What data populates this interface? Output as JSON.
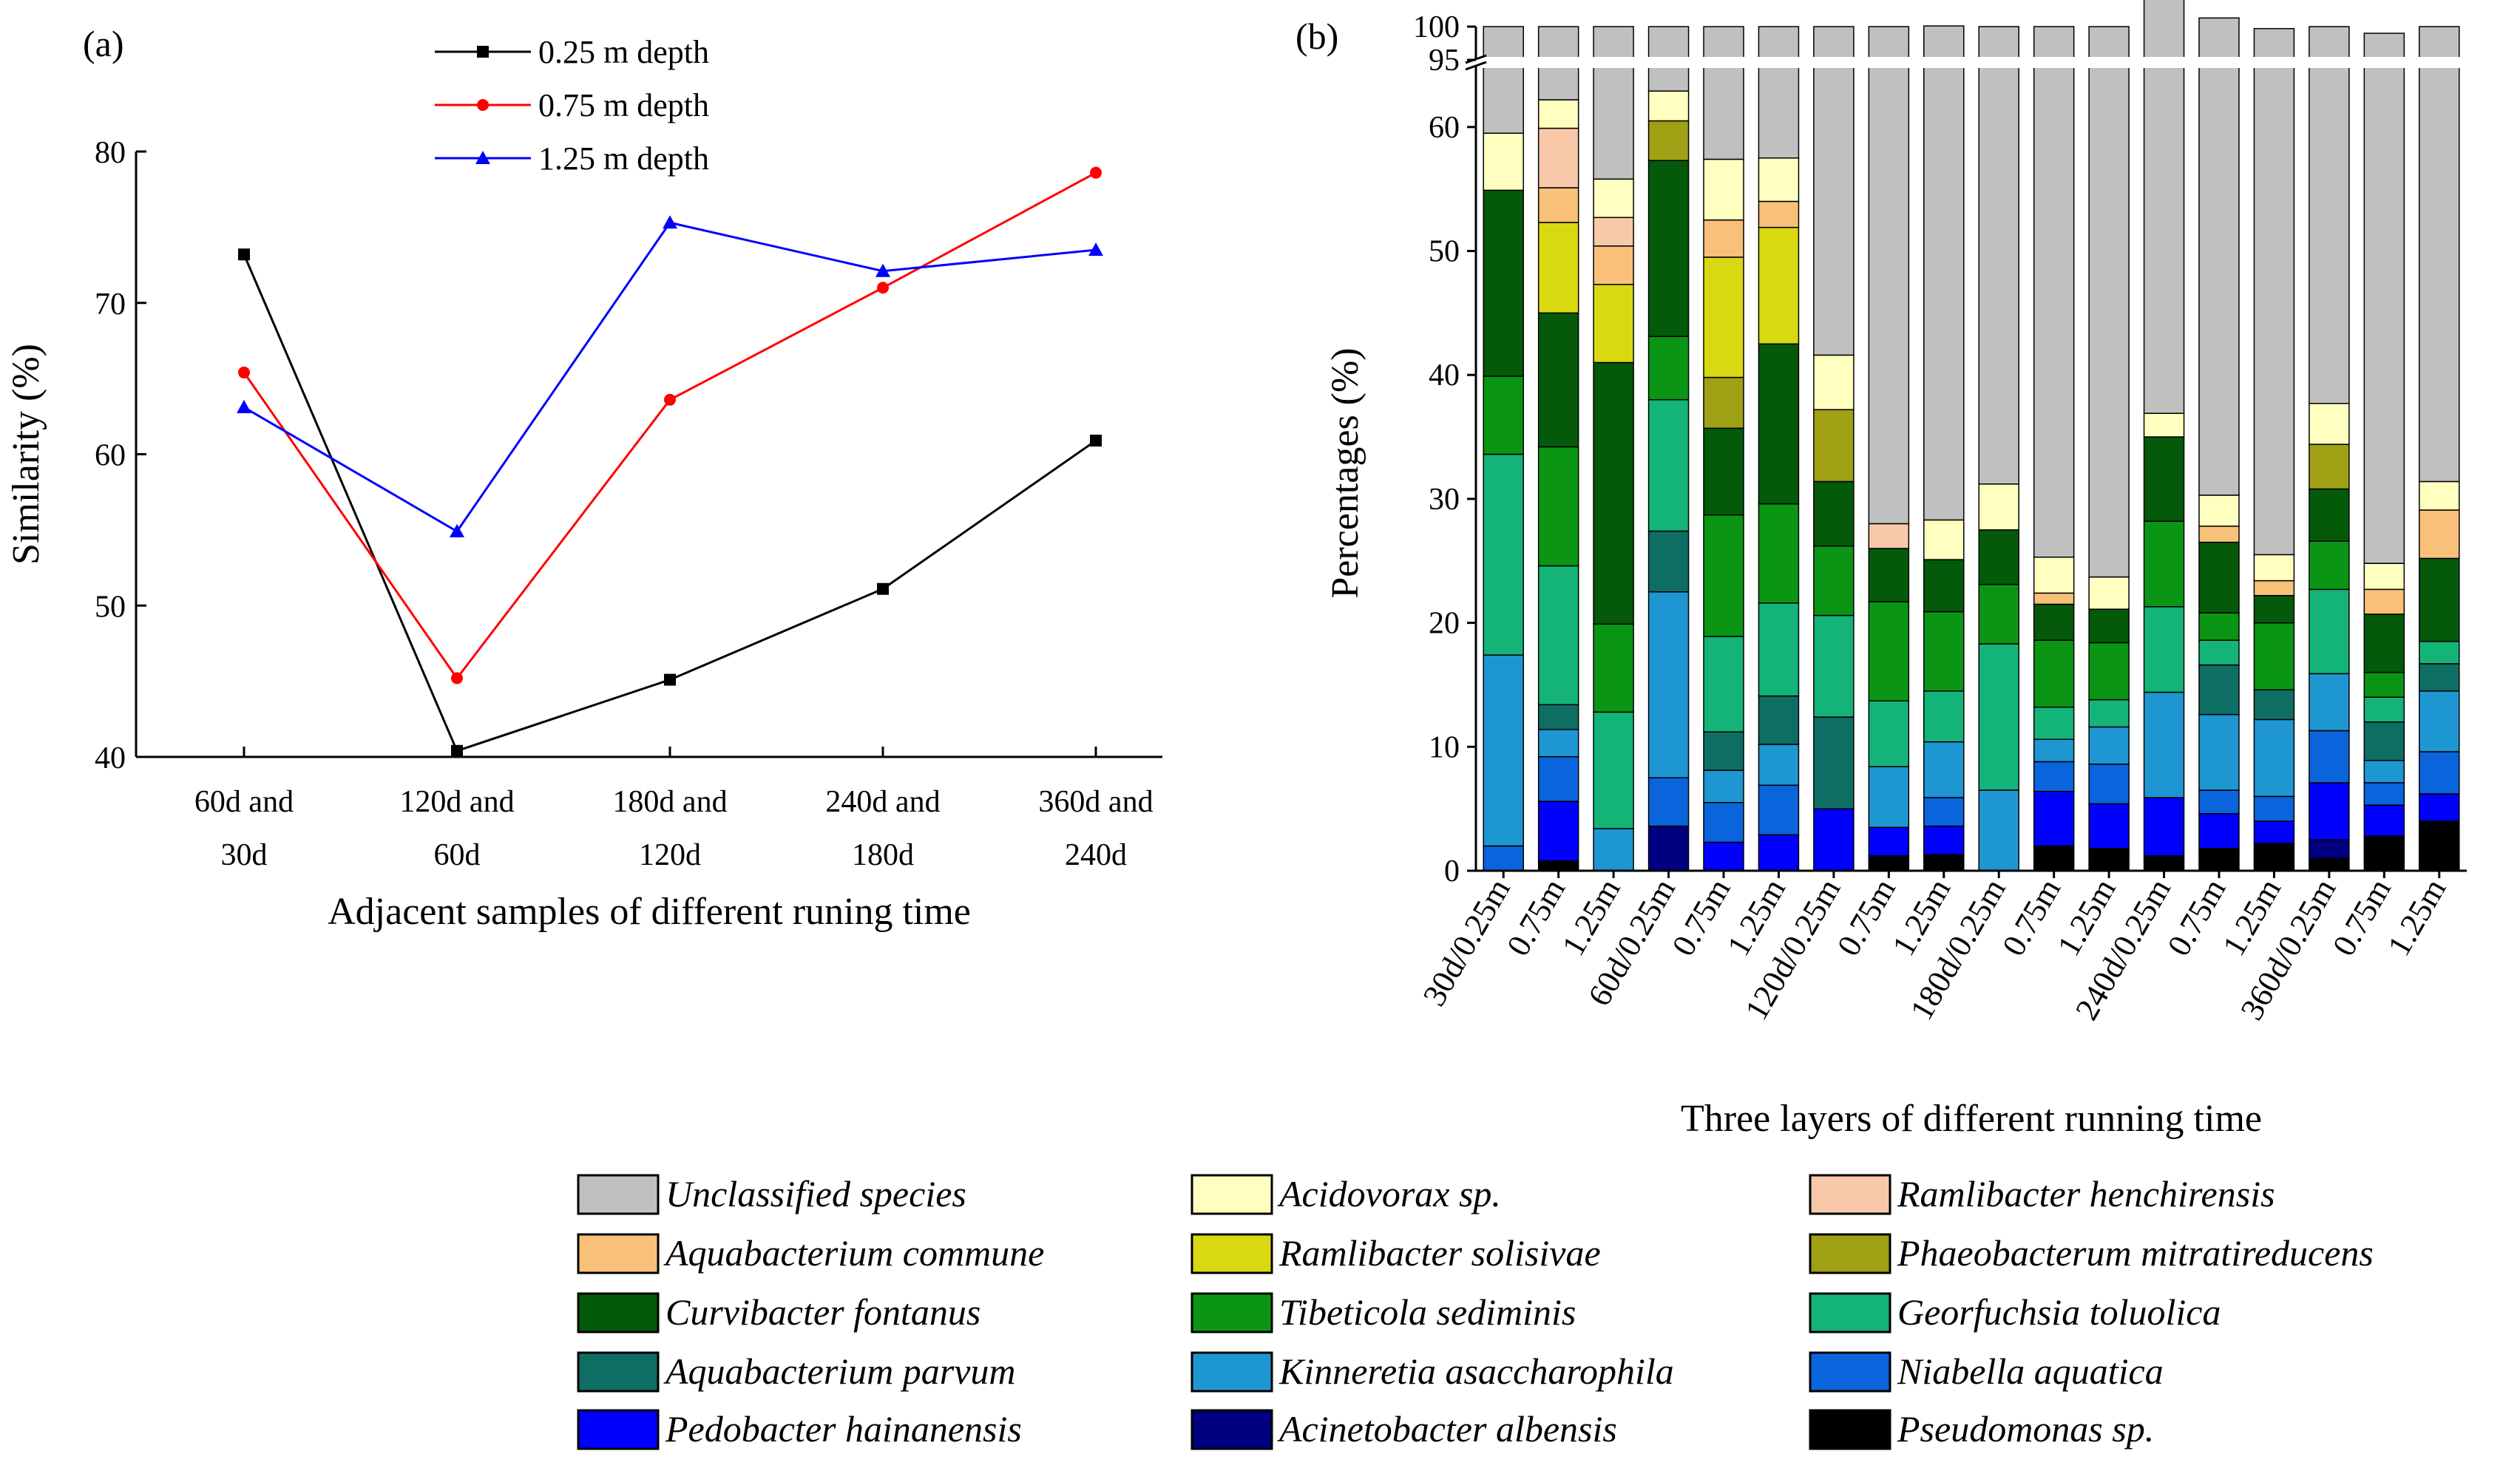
{
  "chart_data": [
    {
      "panel": "(a)",
      "type": "line",
      "xlabel": "Adjacent samples of different runing time",
      "ylabel": "Similarity (%)",
      "ylim": [
        40,
        80
      ],
      "yticks": [
        40,
        50,
        60,
        70,
        80
      ],
      "categories": [
        [
          "60d and",
          "30d"
        ],
        [
          "120d and",
          "60d"
        ],
        [
          "180d and",
          "120d"
        ],
        [
          "240d and",
          "180d"
        ],
        [
          "360d and",
          "240d"
        ]
      ],
      "legend_position": "top-center",
      "series": [
        {
          "name": "0.25 m depth",
          "color": "#000000",
          "marker": "square",
          "values": [
            73.2,
            40.4,
            45.1,
            51.1,
            60.9
          ]
        },
        {
          "name": "0.75 m depth",
          "color": "#ff0000",
          "marker": "circle",
          "values": [
            65.4,
            45.2,
            63.6,
            71.0,
            78.6
          ]
        },
        {
          "name": "1.25 m depth",
          "color": "#0000ff",
          "marker": "triangle",
          "values": [
            63.1,
            54.9,
            75.3,
            72.1,
            73.5
          ]
        }
      ]
    },
    {
      "panel": "(b)",
      "type": "bar",
      "stacked": true,
      "xlabel": "Three layers of different running time",
      "ylabel": "Percentages (%)",
      "ylim": [
        0,
        100
      ],
      "axis_break": [
        65,
        95
      ],
      "yticks": [
        0,
        10,
        20,
        30,
        40,
        50,
        60,
        95,
        100
      ],
      "categories": [
        "30d/0.25m",
        "0.75m",
        "1.25m",
        "60d/0.25m",
        "0.75m",
        "1.25m",
        "120d/0.25m",
        "0.75m",
        "1.25m",
        "180d/0.25m",
        "0.75m",
        "1.25m",
        "240d/0.25m",
        "0.75m",
        "1.25m",
        "360d/0.25m",
        "0.75m",
        "1.25m"
      ],
      "series": [
        {
          "name": "Pseudomonas sp.",
          "color": "#000000",
          "values": [
            0,
            0.8,
            0,
            0,
            0,
            0,
            0,
            1.2,
            1.3,
            0,
            2.0,
            1.8,
            1.2,
            1.8,
            2.2,
            1.0,
            2.8,
            4.0
          ]
        },
        {
          "name": "Acinetobacter albensis",
          "color": "#000080",
          "values": [
            0,
            0,
            0,
            3.6,
            0,
            0,
            0,
            0,
            0,
            0,
            0,
            0,
            0,
            0,
            0,
            1.5,
            0,
            0
          ]
        },
        {
          "name": "Pedobacter hainanensis",
          "color": "#0000ff",
          "values": [
            0,
            4.8,
            0,
            0,
            2.3,
            2.9,
            5.0,
            2.3,
            2.3,
            0,
            4.4,
            3.6,
            4.7,
            2.8,
            1.8,
            4.6,
            2.5,
            2.2
          ]
        },
        {
          "name": "Niabella aquatica",
          "color": "#0a64dc",
          "values": [
            2.0,
            3.6,
            0,
            3.9,
            3.2,
            4.0,
            0,
            0,
            2.3,
            0,
            2.4,
            3.2,
            0,
            1.9,
            2.0,
            4.2,
            1.8,
            3.4
          ]
        },
        {
          "name": "Kinneretia asaccharophila",
          "color": "#1e96d2",
          "values": [
            15.4,
            2.2,
            3.4,
            15.0,
            2.6,
            3.3,
            0,
            4.9,
            4.5,
            6.5,
            1.8,
            3.0,
            8.5,
            6.1,
            6.2,
            4.6,
            1.8,
            4.9
          ]
        },
        {
          "name": "Aquabacterium parvum",
          "color": "#0f6e64",
          "values": [
            0,
            2.0,
            0,
            4.9,
            3.1,
            3.9,
            7.4,
            0,
            0,
            0,
            0,
            0,
            0,
            4.0,
            2.4,
            0,
            3.1,
            2.2
          ]
        },
        {
          "name": "Georfuchsia toluolica",
          "color": "#14b478",
          "values": [
            16.2,
            11.2,
            9.4,
            10.6,
            7.7,
            7.5,
            8.2,
            5.3,
            4.1,
            11.8,
            2.6,
            2.2,
            6.9,
            2.0,
            0,
            6.8,
            2.0,
            1.8
          ]
        },
        {
          "name": "Tibeticola sediminis",
          "color": "#0a9614",
          "values": [
            6.3,
            9.6,
            7.1,
            5.1,
            9.8,
            8.0,
            5.6,
            8.0,
            6.4,
            4.8,
            5.4,
            4.6,
            6.9,
            2.2,
            5.4,
            3.9,
            2.0,
            0
          ]
        },
        {
          "name": "Curvibacter fontanus",
          "color": "#045a0a",
          "values": [
            15.0,
            10.8,
            21.1,
            14.2,
            7.0,
            12.9,
            5.2,
            4.3,
            4.2,
            4.4,
            2.9,
            2.7,
            6.8,
            5.7,
            2.2,
            4.2,
            4.7,
            6.7
          ]
        },
        {
          "name": "Phaeobacterum mitratireducens",
          "color": "#a0a014",
          "values": [
            0,
            0,
            0,
            3.2,
            4.1,
            0,
            5.8,
            0,
            0,
            0,
            0,
            0,
            0,
            0,
            0,
            3.6,
            0,
            0
          ]
        },
        {
          "name": "Ramlibacter solisivae",
          "color": "#d9d912",
          "values": [
            0,
            7.3,
            6.3,
            0,
            9.7,
            9.4,
            0,
            0,
            0,
            0,
            0,
            0,
            0,
            0,
            0,
            0,
            0,
            0
          ]
        },
        {
          "name": "Aquabacterium commune",
          "color": "#f8c078",
          "values": [
            0,
            2.8,
            3.1,
            0,
            3.0,
            2.1,
            0,
            0,
            0,
            0,
            0.9,
            0,
            0,
            1.3,
            1.2,
            0,
            2.0,
            3.9
          ]
        },
        {
          "name": "Ramlibacter henchirensis",
          "color": "#f8c8a8",
          "values": [
            0,
            4.8,
            2.3,
            0,
            0,
            0,
            0,
            2.0,
            0,
            0,
            0,
            0,
            0,
            0,
            0,
            0,
            0,
            0
          ]
        },
        {
          "name": "Acidovorax sp.",
          "color": "#ffffc0",
          "values": [
            4.6,
            2.3,
            3.1,
            2.4,
            4.9,
            3.5,
            4.4,
            0,
            3.2,
            3.7,
            2.9,
            2.6,
            1.9,
            2.5,
            2.1,
            3.3,
            2.1,
            2.3
          ]
        },
        {
          "name": "Unclassified species",
          "color": "#c0c0c0",
          "values": [
            40.5,
            37.8,
            44.2,
            37.1,
            42.6,
            42.5,
            58.4,
            72.0,
            71.8,
            68.8,
            74.7,
            76.3,
            70.1,
            71.0,
            74.2,
            62.3,
            74.2,
            68.6
          ]
        }
      ],
      "legend_order": [
        "Unclassified species",
        "Acidovorax sp.",
        "Ramlibacter henchirensis",
        "Aquabacterium commune",
        "Ramlibacter solisivae",
        "Phaeobacterum mitratireducens",
        "Curvibacter fontanus",
        "Tibeticola sediminis",
        "Georfuchsia toluolica",
        "Aquabacterium parvum",
        "Kinneretia asaccharophila",
        "Niabella aquatica",
        "Pedobacter hainanensis",
        "Acinetobacter albensis",
        "Pseudomonas sp."
      ]
    }
  ]
}
